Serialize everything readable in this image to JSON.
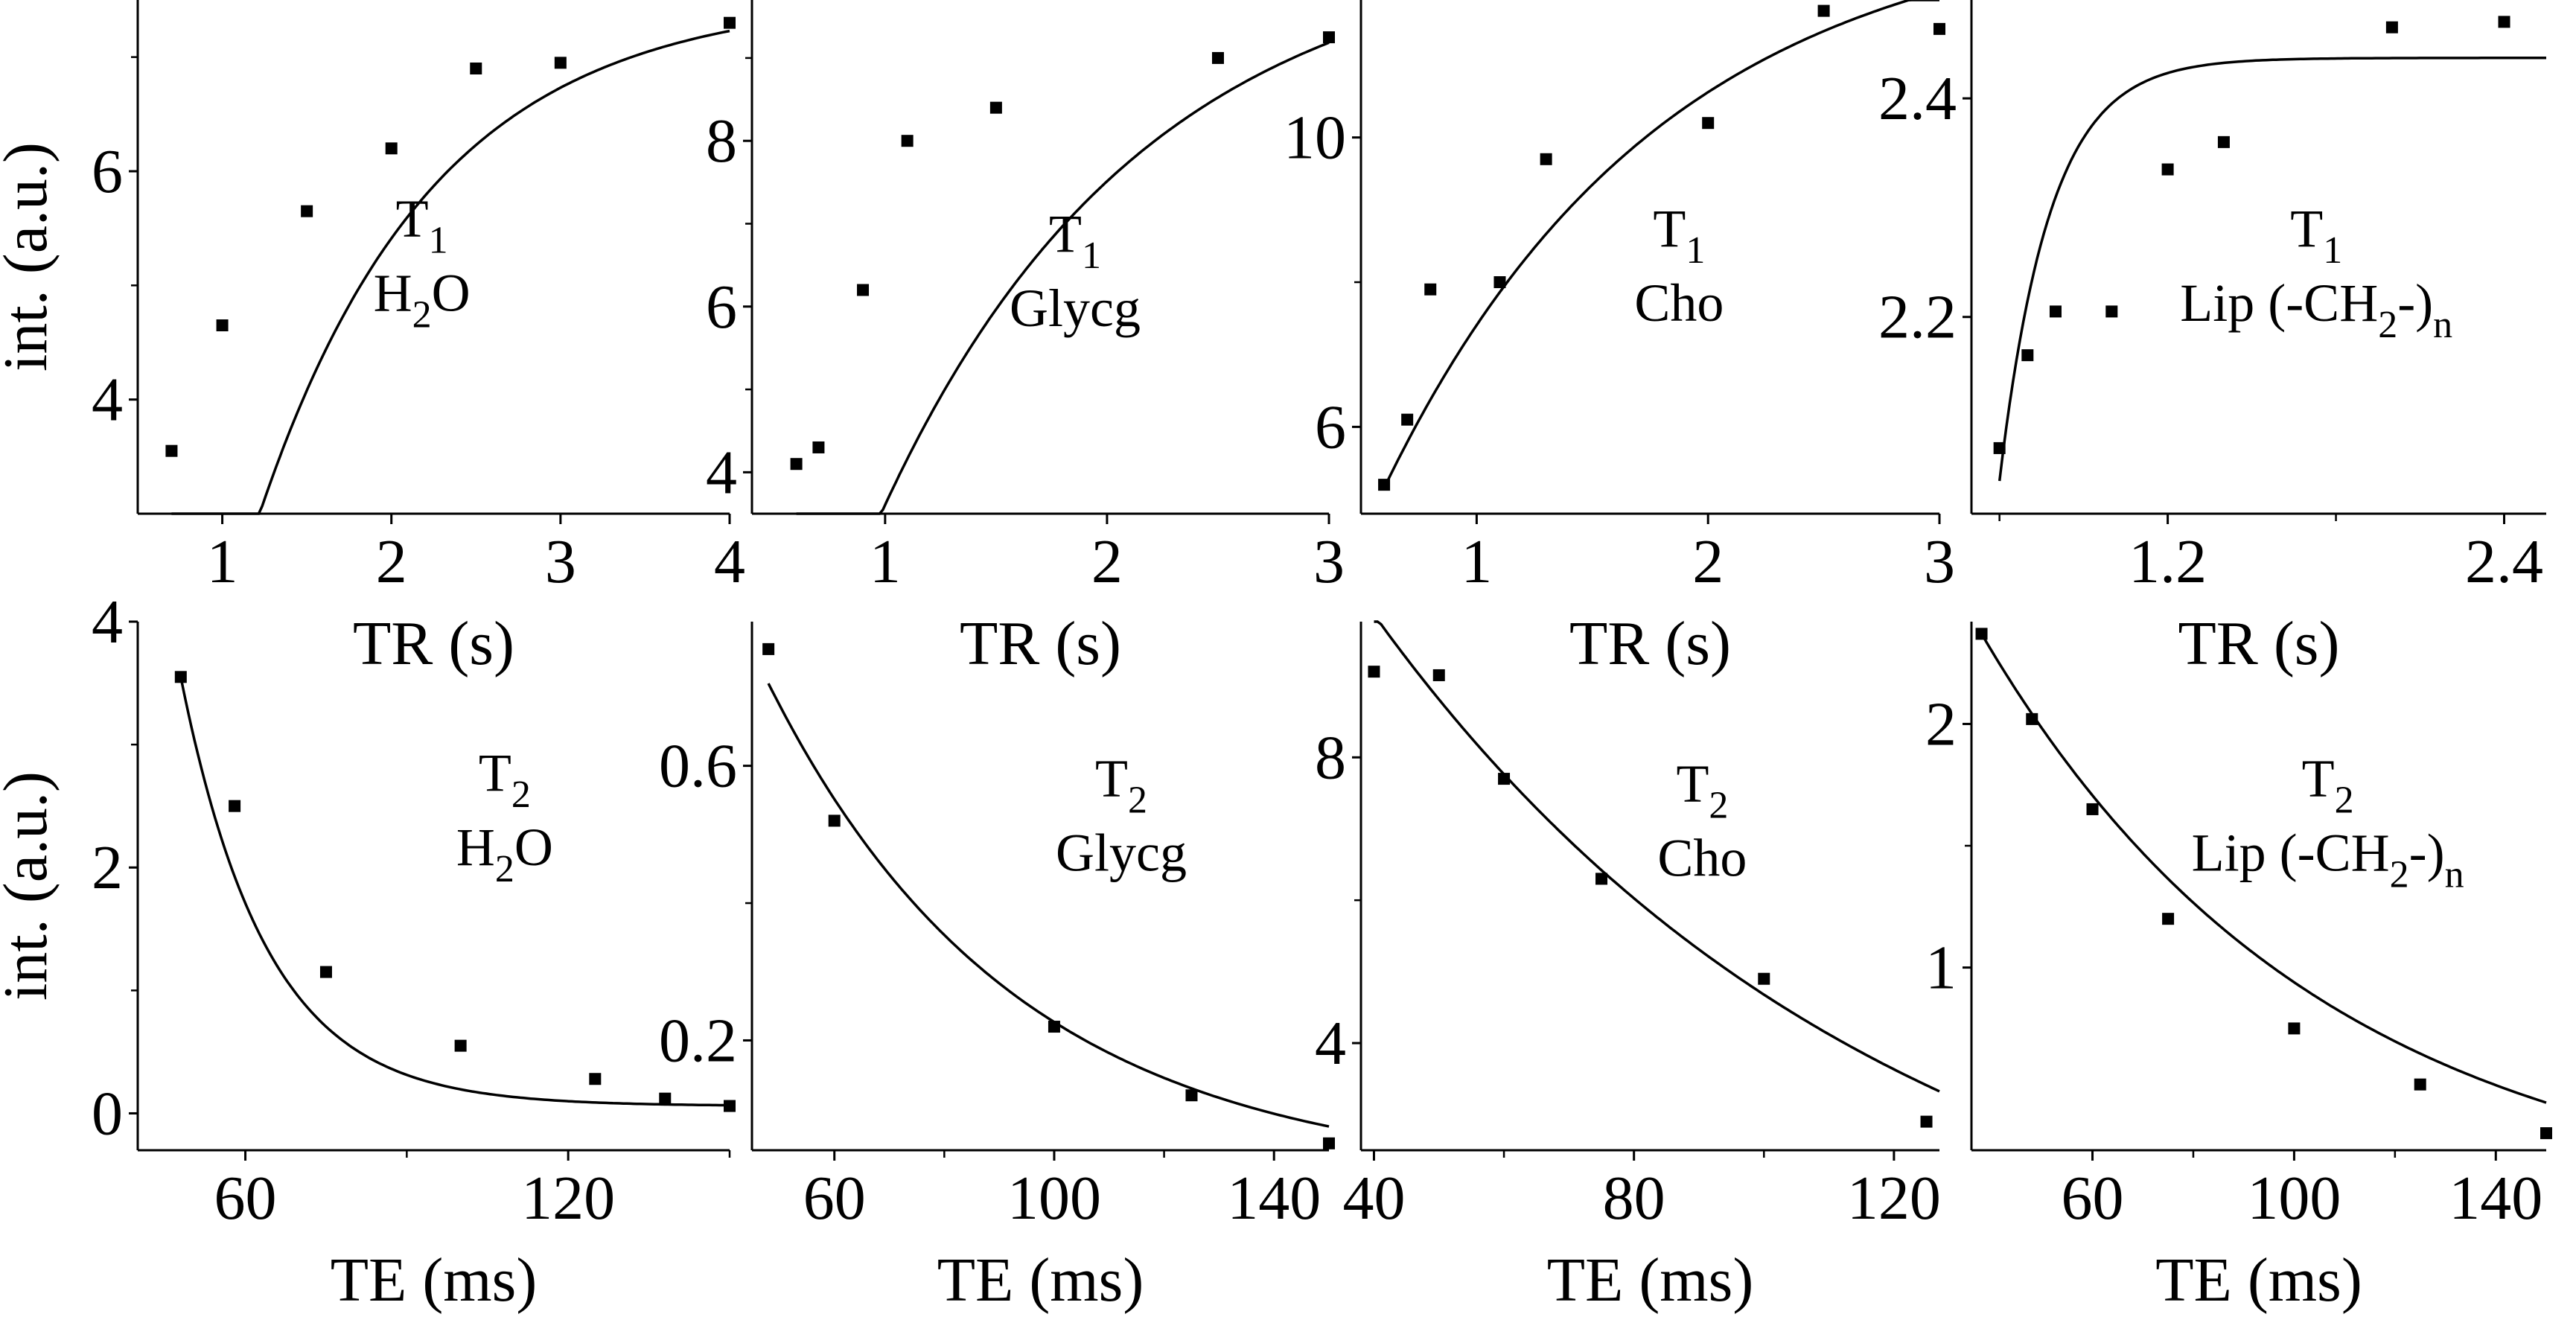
{
  "figure": {
    "y_axis_title": "int. (a.u.)",
    "colors": {
      "marker": "#000000",
      "curve": "#000000",
      "axis": "#000000"
    }
  },
  "chart_data": [
    {
      "type": "scatter",
      "title": "T1 H2O",
      "label": {
        "main": "T",
        "sub": "1",
        "second_parts": [
          {
            "t": "H"
          },
          {
            "t": "2",
            "sub": true
          },
          {
            "t": "O"
          }
        ]
      },
      "xlabel": "TR (s)",
      "ylabel": "int. (a.u.)",
      "xlim": [
        0.5,
        4.0
      ],
      "ylim": [
        3.0,
        7.5
      ],
      "xticks": [
        1,
        2,
        3,
        4
      ],
      "xtick_labels": [
        "1",
        "2",
        "3",
        "4"
      ],
      "yticks": [
        4,
        6
      ],
      "ytick_labels": [
        "4",
        "6"
      ],
      "minor_yticks": [
        5,
        7
      ],
      "points": {
        "x": [
          0.7,
          1.0,
          1.5,
          2.0,
          2.5,
          3.0,
          4.0
        ],
        "y": [
          3.55,
          4.65,
          5.65,
          6.2,
          6.9,
          6.95,
          7.3
        ]
      },
      "fit": {
        "model": "recovery",
        "A": 7.53,
        "T": 1.025,
        "x0": 0.7
      },
      "grid": false
    },
    {
      "type": "scatter",
      "title": "T1 Glycg",
      "label": {
        "main": "T",
        "sub": "1",
        "second_parts": [
          {
            "t": "Glycg"
          }
        ]
      },
      "xlabel": "TR (s)",
      "ylabel": "",
      "xlim": [
        0.4,
        3.0
      ],
      "ylim": [
        3.5,
        9.7
      ],
      "xticks": [
        1,
        2,
        3
      ],
      "xtick_labels": [
        "1",
        "2",
        "3"
      ],
      "yticks": [
        4,
        6,
        8
      ],
      "ytick_labels": [
        "4",
        "6",
        "8"
      ],
      "minor_yticks": [
        5,
        7,
        9
      ],
      "points": {
        "x": [
          0.6,
          0.7,
          0.9,
          1.1,
          1.5,
          2.5,
          3.0
        ],
        "y": [
          4.1,
          4.3,
          6.2,
          8.0,
          8.4,
          9.0,
          9.25
        ]
      },
      "fit": {
        "model": "recovery",
        "A": 10.44,
        "T": 1.18,
        "x0": 0.5
      },
      "grid": false
    },
    {
      "type": "scatter",
      "title": "T1 Cho",
      "label": {
        "main": "T",
        "sub": "1",
        "second_parts": [
          {
            "t": "Cho"
          }
        ]
      },
      "xlabel": "TR (s)",
      "ylabel": "",
      "xlim": [
        0.5,
        3.0
      ],
      "ylim": [
        4.8,
        11.9
      ],
      "xticks": [
        1,
        2,
        3
      ],
      "xtick_labels": [
        "1",
        "2",
        "3"
      ],
      "yticks": [
        6,
        10
      ],
      "ytick_labels": [
        "6",
        "10"
      ],
      "minor_yticks": [
        8
      ],
      "points": {
        "x": [
          0.6,
          0.7,
          0.8,
          1.1,
          1.3,
          2.0,
          2.5,
          3.0
        ],
        "y": [
          5.2,
          6.1,
          7.9,
          8.0,
          9.7,
          10.2,
          11.75,
          11.5
        ]
      },
      "fit": {
        "model": "recovery",
        "A": 13.1,
        "T": 1.2,
        "x0": 0.0
      },
      "grid": false
    },
    {
      "type": "scatter",
      "title": "T1 Lip (-CH2-)n",
      "label": {
        "main": "T",
        "sub": "1",
        "second_parts": [
          {
            "t": "Lip (-CH"
          },
          {
            "t": "2",
            "sub": true
          },
          {
            "t": "-)"
          },
          {
            "t": "n",
            "sub": true
          }
        ]
      },
      "xlabel": "TR (s)",
      "ylabel": "",
      "xlim": [
        0.5,
        2.55
      ],
      "ylim": [
        2.02,
        2.49
      ],
      "xticks": [
        1.2,
        2.4
      ],
      "xtick_labels": [
        "1.2",
        "2.4"
      ],
      "yticks": [
        2.2,
        2.4
      ],
      "ytick_labels": [
        "2.2",
        "2.4"
      ],
      "minor_xticks": [
        0.6,
        1.8
      ],
      "points": {
        "x": [
          0.6,
          0.7,
          0.8,
          1.0,
          1.2,
          1.4,
          2.0,
          2.4
        ],
        "y": [
          2.08,
          2.165,
          2.205,
          2.205,
          2.335,
          2.36,
          2.465,
          2.47
        ]
      },
      "fit": {
        "model": "recovery",
        "A": 2.437,
        "T": 0.18,
        "x0": 0.6,
        "y0": 2.05
      },
      "grid": false
    },
    {
      "type": "scatter",
      "title": "T2 H2O",
      "label": {
        "main": "T",
        "sub": "2",
        "second_parts": [
          {
            "t": "H"
          },
          {
            "t": "2",
            "sub": true
          },
          {
            "t": "O"
          }
        ]
      },
      "xlabel": "TE (ms)",
      "ylabel": "int. (a.u.)",
      "xlim": [
        40,
        150
      ],
      "ylim": [
        -0.3,
        4.0
      ],
      "xticks": [
        60,
        120
      ],
      "xtick_labels": [
        "60",
        "120"
      ],
      "minor_xticks": [
        90,
        150
      ],
      "yticks": [
        0,
        2,
        4
      ],
      "ytick_labels": [
        "0",
        "2",
        "4"
      ],
      "minor_yticks": [
        1,
        3
      ],
      "points": {
        "x": [
          48,
          58,
          75,
          100,
          125,
          138,
          150
        ],
        "y": [
          3.55,
          2.5,
          1.15,
          0.55,
          0.28,
          0.12,
          0.06
        ]
      },
      "fit": {
        "model": "decay",
        "A": 3.55,
        "T": 16.0,
        "C": 0.06,
        "x0": 48
      },
      "grid": false
    },
    {
      "type": "scatter",
      "title": "T2 Glycg",
      "label": {
        "main": "T",
        "sub": "2",
        "second_parts": [
          {
            "t": "Glycg"
          }
        ]
      },
      "xlabel": "TE (ms)",
      "ylabel": "",
      "xlim": [
        45,
        150
      ],
      "ylim": [
        0.04,
        0.81
      ],
      "xticks": [
        60,
        100,
        140
      ],
      "xtick_labels": [
        "60",
        "100",
        "140"
      ],
      "minor_xticks": [
        80,
        120
      ],
      "yticks": [
        0.2,
        0.6
      ],
      "ytick_labels": [
        "0.2",
        "0.6"
      ],
      "minor_yticks": [
        0.4
      ],
      "points": {
        "x": [
          48,
          60,
          100,
          125,
          150
        ],
        "y": [
          0.77,
          0.52,
          0.22,
          0.12,
          0.05
        ]
      },
      "fit": {
        "model": "decay",
        "A": 0.72,
        "T": 45.0,
        "C": 0.0,
        "x0": 48
      },
      "grid": false
    },
    {
      "type": "scatter",
      "title": "T2 Cho",
      "label": {
        "main": "T",
        "sub": "2",
        "second_parts": [
          {
            "t": "Cho"
          }
        ]
      },
      "xlabel": "TE (ms)",
      "ylabel": "",
      "xlim": [
        38,
        127
      ],
      "ylim": [
        2.5,
        9.9
      ],
      "xticks": [
        40,
        80,
        120
      ],
      "xtick_labels": [
        "40",
        "80",
        "120"
      ],
      "minor_xticks": [
        60,
        100
      ],
      "yticks": [
        4,
        8
      ],
      "ytick_labels": [
        "4",
        "8"
      ],
      "minor_yticks": [
        6
      ],
      "points": {
        "x": [
          40,
          50,
          60,
          75,
          100,
          125
        ],
        "y": [
          9.2,
          9.15,
          7.7,
          6.3,
          4.9,
          2.9
        ]
      },
      "fit": {
        "model": "decay",
        "A": 10.0,
        "T": 79.0,
        "C": 0.0,
        "x0": 40
      },
      "grid": false
    },
    {
      "type": "scatter",
      "title": "T2 Lip (-CH2-)n",
      "label": {
        "main": "T",
        "sub": "2",
        "second_parts": [
          {
            "t": "Lip (-CH"
          },
          {
            "t": "2",
            "sub": true
          },
          {
            "t": "-)"
          },
          {
            "t": "n",
            "sub": true
          }
        ]
      },
      "xlabel": "TE (ms)",
      "ylabel": "",
      "xlim": [
        36,
        150
      ],
      "ylim": [
        0.25,
        2.42
      ],
      "xticks": [
        60,
        100,
        140
      ],
      "xtick_labels": [
        "60",
        "100",
        "140"
      ],
      "minor_xticks": [
        80,
        120
      ],
      "yticks": [
        1,
        2
      ],
      "ytick_labels": [
        "1",
        "2"
      ],
      "minor_yticks": [
        1.5
      ],
      "points": {
        "x": [
          38,
          48,
          60,
          75,
          100,
          125,
          150
        ],
        "y": [
          2.37,
          2.02,
          1.65,
          1.2,
          0.75,
          0.52,
          0.32
        ]
      },
      "fit": {
        "model": "decay",
        "A": 2.37,
        "T": 67.0,
        "C": 0.0,
        "x0": 38
      },
      "grid": false
    }
  ]
}
